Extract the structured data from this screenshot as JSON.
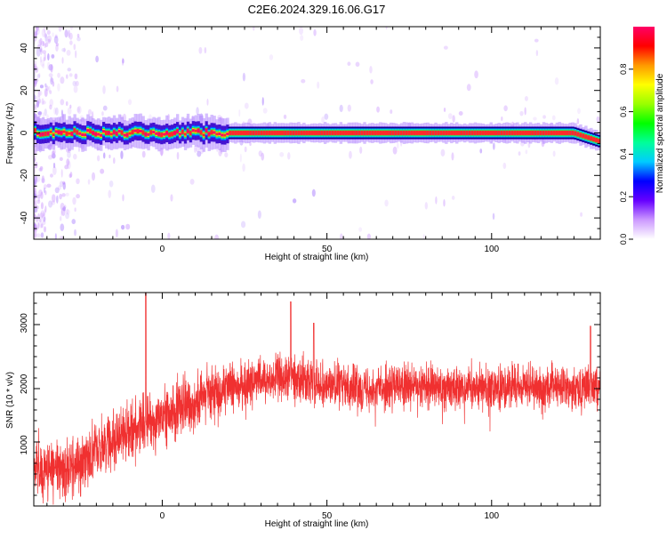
{
  "title": "C2E6.2024.329.16.06.G17",
  "chart_data": [
    {
      "type": "heatmap",
      "xlabel": "Height of straight line (km)",
      "ylabel": "Frequency (Hz)",
      "xlim": [
        -39,
        133
      ],
      "ylim": [
        -50,
        50
      ],
      "x_ticks": [
        0,
        50,
        100
      ],
      "y_ticks": [
        40,
        20,
        0,
        -20,
        -40
      ],
      "grid": false,
      "band_center_hz": 0,
      "band_halfwidth_hz": 2,
      "band_end_tilt_hz": -4,
      "colorbar": {
        "label": "Normalized spectral amplitude",
        "range": [
          0,
          1
        ],
        "ticks": [
          0.0,
          0.2,
          0.4,
          0.6,
          0.8
        ],
        "tick_labels": [
          "0.0",
          "0.2",
          "0.4",
          "0.6",
          "0.8"
        ],
        "placement": "right",
        "colors": [
          "#ffffff",
          "#cc99ff",
          "#6600ff",
          "#0000ff",
          "#00ccff",
          "#00ff99",
          "#00ff00",
          "#99ff00",
          "#ffff00",
          "#ff9900",
          "#ff0000",
          "#ff0066"
        ]
      }
    },
    {
      "type": "line",
      "xlabel": "Height of straight line (km)",
      "ylabel": "SNR (10 * v/v)",
      "xlim": [
        -39,
        133
      ],
      "ylim": [
        0,
        3500
      ],
      "x_ticks": [
        0,
        50,
        100
      ],
      "y_ticks": [
        1000,
        2000,
        3000
      ],
      "grid": false,
      "color": "#f03030",
      "trend": {
        "x": [
          -39,
          -30,
          -25,
          -20,
          -15,
          -10,
          -5,
          0,
          5,
          10,
          15,
          20,
          25,
          30,
          35,
          40,
          45,
          50,
          60,
          70,
          80,
          90,
          100,
          110,
          120,
          133
        ],
        "y": [
          650,
          580,
          700,
          950,
          1100,
          1250,
          1350,
          1450,
          1600,
          1700,
          1850,
          1950,
          2000,
          2050,
          2100,
          2100,
          2050,
          2000,
          1950,
          1950,
          1950,
          1950,
          1950,
          1950,
          1950,
          1950
        ]
      },
      "spikes": [
        {
          "x": -5,
          "y": 3500
        },
        {
          "x": 39,
          "y": 3350
        },
        {
          "x": 46,
          "y": 3000
        },
        {
          "x": 130,
          "y": 2950
        }
      ]
    }
  ]
}
